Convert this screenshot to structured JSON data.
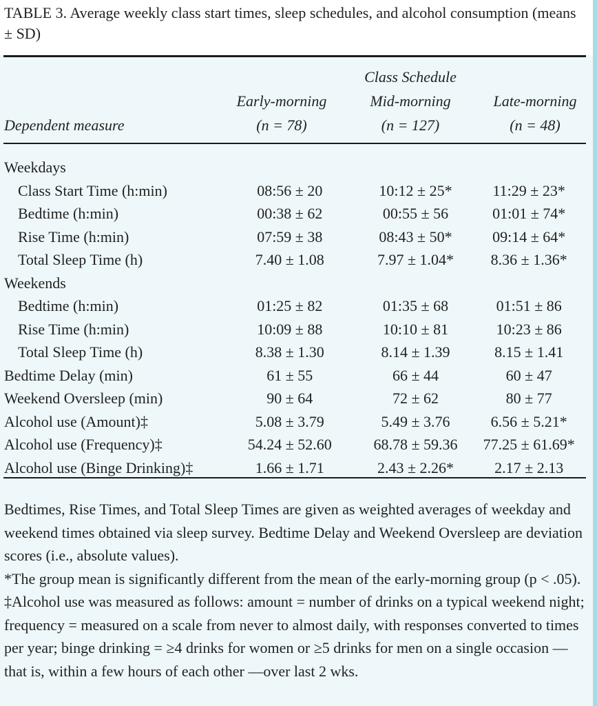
{
  "caption": "TABLE 3. Average weekly class start times, sleep schedules, and alcohol consumption (means ± SD)",
  "header": {
    "col0": "Dependent measure",
    "spanner": "Class Schedule",
    "col1": {
      "title": "Early-morning",
      "n": "(n = 78)"
    },
    "col2": {
      "title": "Mid-morning",
      "n": "(n = 127)"
    },
    "col3": {
      "title": "Late-morning",
      "n": "(n = 48)"
    }
  },
  "rows": [
    {
      "label": "Weekdays",
      "group": true,
      "v": [
        "",
        "",
        ""
      ]
    },
    {
      "label": "Class Start Time (h:min)",
      "sub": true,
      "v": [
        "08:56 ± 20",
        "10:12 ± 25*",
        "11:29 ± 23*"
      ]
    },
    {
      "label": "Bedtime (h:min)",
      "sub": true,
      "v": [
        "00:38 ± 62",
        "00:55 ± 56",
        "01:01 ± 74*"
      ]
    },
    {
      "label": "Rise Time (h:min)",
      "sub": true,
      "v": [
        "07:59 ± 38",
        "08:43 ± 50*",
        "09:14 ± 64*"
      ]
    },
    {
      "label": "Total Sleep Time (h)",
      "sub": true,
      "v": [
        "7.40 ± 1.08",
        "7.97 ± 1.04*",
        "8.36 ± 1.36*"
      ]
    },
    {
      "label": "Weekends",
      "group": true,
      "v": [
        "",
        "",
        ""
      ]
    },
    {
      "label": "Bedtime (h:min)",
      "sub": true,
      "v": [
        "01:25 ± 82",
        "01:35 ± 68",
        "01:51 ± 86"
      ]
    },
    {
      "label": "Rise Time (h:min)",
      "sub": true,
      "v": [
        "10:09 ± 88",
        "10:10 ± 81",
        "10:23 ± 86"
      ]
    },
    {
      "label": "Total Sleep Time (h)",
      "sub": true,
      "v": [
        "8.38 ± 1.30",
        "8.14 ± 1.39",
        "8.15 ± 1.41"
      ]
    },
    {
      "label": "Bedtime Delay (min)",
      "v": [
        "61 ± 55",
        "66 ± 44",
        "60 ± 47"
      ]
    },
    {
      "label": "Weekend Oversleep (min)",
      "v": [
        "90 ± 64",
        "72 ± 62",
        "80 ± 77"
      ]
    },
    {
      "label": "Alcohol use (Amount)‡",
      "v": [
        "5.08 ± 3.79",
        "5.49 ± 3.76",
        "6.56 ± 5.21*"
      ]
    },
    {
      "label": "Alcohol use (Frequency)‡",
      "v": [
        "54.24 ± 52.60",
        "68.78 ± 59.36",
        "77.25 ± 61.69*"
      ]
    },
    {
      "label": "Alcohol use (Binge Drinking)‡",
      "v": [
        "1.66 ± 1.71",
        "2.43 ± 2.26*",
        "2.17 ± 2.13"
      ]
    }
  ],
  "notes": [
    "Bedtimes, Rise Times, and Total Sleep Times are given as weighted averages of weekday and weekend times obtained via sleep survey. Bedtime Delay and Weekend Oversleep are deviation scores (i.e., absolute values).",
    "*The group mean is significantly different from the mean of the early-morning group (p < .05).",
    "‡Alcohol use was measured as follows: amount = number of drinks on a typical weekend night; frequency = measured on a scale from never to almost daily, with responses converted to times per year; binge drinking = ≥4 drinks for women or ≥5 drinks for men on a single occasion — that is, within a few hours of each other —over last 2 wks."
  ]
}
